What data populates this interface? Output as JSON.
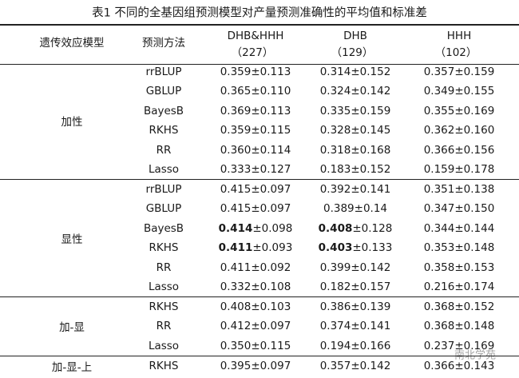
{
  "title": "表1   不同的全基因组预测模型对产量预测准确性的平均值和标准差",
  "header": {
    "model": "遗传效应模型",
    "method": "预测方法",
    "populations": [
      {
        "name": "DHB&HHH",
        "n": "（227）"
      },
      {
        "name": "DHB",
        "n": "（129）"
      },
      {
        "name": "HHH",
        "n": "（102）"
      }
    ]
  },
  "groups": [
    {
      "label": "加性",
      "rows": [
        {
          "method": "rrBLUP",
          "values": [
            "0.359±0.113",
            "0.314±0.152",
            "0.357±0.159"
          ]
        },
        {
          "method": "GBLUP",
          "values": [
            "0.365±0.110",
            "0.324±0.142",
            "0.349±0.155"
          ]
        },
        {
          "method": "BayesB",
          "values": [
            "0.369±0.113",
            "0.335±0.159",
            "0.355±0.169"
          ]
        },
        {
          "method": "RKHS",
          "values": [
            "0.359±0.115",
            "0.328±0.145",
            "0.362±0.160"
          ]
        },
        {
          "method": "RR",
          "values": [
            "0.360±0.114",
            "0.318±0.168",
            "0.366±0.156"
          ]
        },
        {
          "method": "Lasso",
          "values": [
            "0.333±0.127",
            "0.183±0.152",
            "0.159±0.178"
          ]
        }
      ]
    },
    {
      "label": "显性",
      "rows": [
        {
          "method": "rrBLUP",
          "values": [
            "0.415±0.097",
            "0.392±0.141",
            "0.351±0.138"
          ]
        },
        {
          "method": "GBLUP",
          "values": [
            "0.415±0.097",
            "0.389±0.14",
            "0.347±0.150"
          ]
        },
        {
          "method": "BayesB",
          "values": [
            {
              "bold": "0.414",
              "rest": "±0.098"
            },
            {
              "bold": "0.408",
              "rest": "±0.128"
            },
            "0.344±0.144"
          ]
        },
        {
          "method": "RKHS",
          "values": [
            {
              "bold": "0.411",
              "rest": "±0.093"
            },
            {
              "bold": "0.403",
              "rest": "±0.133"
            },
            "0.353±0.148"
          ]
        },
        {
          "method": "RR",
          "values": [
            "0.411±0.092",
            "0.399±0.142",
            "0.358±0.153"
          ]
        },
        {
          "method": "Lasso",
          "values": [
            "0.332±0.108",
            "0.182±0.157",
            "0.216±0.174"
          ]
        }
      ]
    },
    {
      "label": "加-显",
      "rows": [
        {
          "method": "RKHS",
          "values": [
            "0.408±0.103",
            "0.386±0.139",
            "0.368±0.152"
          ]
        },
        {
          "method": "RR",
          "values": [
            "0.412±0.097",
            "0.374±0.141",
            "0.368±0.148"
          ]
        },
        {
          "method": "Lasso",
          "values": [
            "0.350±0.115",
            "0.194±0.166",
            "0.237±0.169"
          ]
        }
      ]
    },
    {
      "label": "加-显-上",
      "rows": [
        {
          "method": "RKHS",
          "values": [
            "0.395±0.097",
            "0.357±0.142",
            "0.366±0.143"
          ]
        }
      ]
    }
  ],
  "watermark": "南北学苑"
}
